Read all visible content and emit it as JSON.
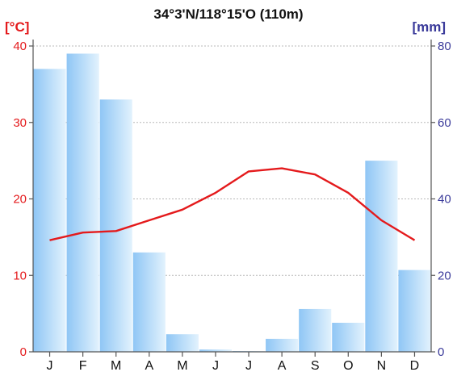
{
  "chart_data": {
    "type": "bar",
    "title": "34°3'N/118°15'O (110m)",
    "categories": [
      "J",
      "F",
      "M",
      "A",
      "M",
      "J",
      "J",
      "A",
      "S",
      "O",
      "N",
      "D"
    ],
    "y_left": {
      "label": "[°C]",
      "range": [
        0,
        40
      ],
      "ticks": [
        0,
        10,
        20,
        30,
        40
      ]
    },
    "y_right": {
      "label": "[mm]",
      "range": [
        0,
        80
      ],
      "ticks": [
        0,
        20,
        40,
        60,
        80
      ]
    },
    "grid": true,
    "series": [
      {
        "type": "bar",
        "axis": "right",
        "values": [
          74,
          78,
          66,
          26,
          4.6,
          0.6,
          0.2,
          3.4,
          11.2,
          7.6,
          50,
          21.4
        ]
      },
      {
        "type": "line",
        "axis": "left",
        "values": [
          14.6,
          15.6,
          15.8,
          17.2,
          18.6,
          20.8,
          23.6,
          24.0,
          23.2,
          20.8,
          17.2,
          14.6
        ]
      }
    ],
    "colors": {
      "bar_light": "#e2f2fd",
      "bar_dark": "#8fc6f5",
      "line": "#e41a1c",
      "left_axis": "#e41a1c",
      "right_axis": "#3a3a9a"
    }
  }
}
